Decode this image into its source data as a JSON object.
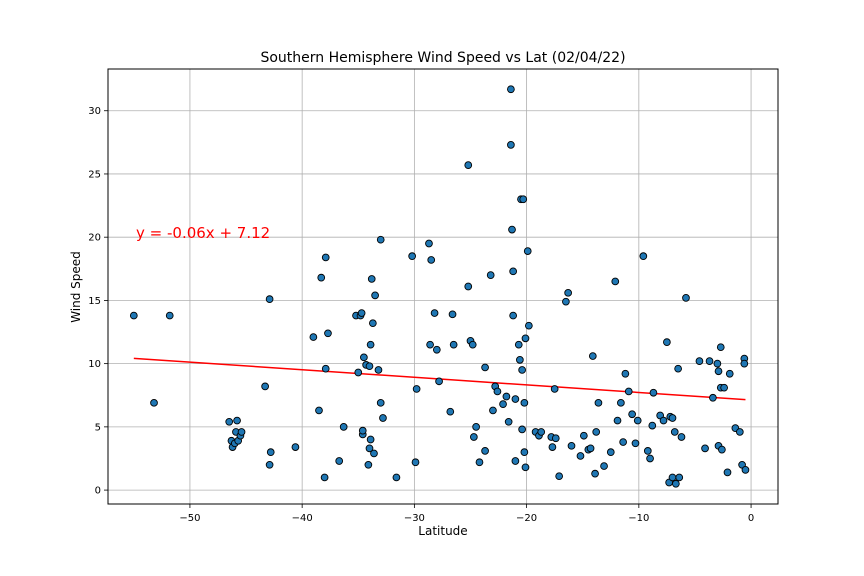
{
  "chart_data": {
    "type": "scatter",
    "title": "Southern Hemisphere Wind Speed vs Lat (02/04/22)",
    "xlabel": "Latitude",
    "ylabel": "Wind Speed",
    "xlim": [
      -57.3,
      2.4
    ],
    "ylim": [
      -1.1,
      33.3
    ],
    "xticks": [
      -50,
      -40,
      -30,
      -20,
      -10,
      0
    ],
    "yticks": [
      0,
      5,
      10,
      15,
      20,
      25,
      30
    ],
    "grid": true,
    "point_color": "#1f77b4",
    "point_edge_color": "#000000",
    "regression": {
      "equation": "y = -0.06x + 7.12",
      "slope": -0.06,
      "intercept": 7.12,
      "x_range": [
        -55.0,
        -0.5
      ],
      "color": "#ff0000"
    },
    "points": [
      [
        -55.0,
        13.8
      ],
      [
        -53.2,
        6.9
      ],
      [
        -51.8,
        13.8
      ],
      [
        -46.5,
        5.4
      ],
      [
        -46.3,
        3.9
      ],
      [
        -46.2,
        3.4
      ],
      [
        -46.0,
        3.7
      ],
      [
        -45.9,
        4.6
      ],
      [
        -45.8,
        5.5
      ],
      [
        -45.7,
        3.9
      ],
      [
        -45.5,
        4.3
      ],
      [
        -45.4,
        4.6
      ],
      [
        -43.3,
        8.2
      ],
      [
        -42.9,
        15.1
      ],
      [
        -42.9,
        2.0
      ],
      [
        -42.8,
        3.0
      ],
      [
        -40.6,
        3.4
      ],
      [
        -39.0,
        12.1
      ],
      [
        -38.5,
        6.3
      ],
      [
        -38.3,
        16.8
      ],
      [
        -38.0,
        1.0
      ],
      [
        -37.9,
        18.4
      ],
      [
        -37.9,
        9.6
      ],
      [
        -37.7,
        12.4
      ],
      [
        -36.7,
        2.3
      ],
      [
        -36.3,
        5.0
      ],
      [
        -35.2,
        13.8
      ],
      [
        -35.0,
        9.3
      ],
      [
        -34.8,
        13.8
      ],
      [
        -34.7,
        14.0
      ],
      [
        -34.6,
        4.4
      ],
      [
        -34.6,
        4.7
      ],
      [
        -34.5,
        10.5
      ],
      [
        -34.3,
        9.9
      ],
      [
        -34.1,
        2.0
      ],
      [
        -34.0,
        3.3
      ],
      [
        -34.0,
        9.8
      ],
      [
        -33.9,
        4.0
      ],
      [
        -33.9,
        11.5
      ],
      [
        -33.8,
        16.7
      ],
      [
        -33.7,
        13.2
      ],
      [
        -33.6,
        2.9
      ],
      [
        -33.5,
        15.4
      ],
      [
        -33.2,
        9.5
      ],
      [
        -33.0,
        6.9
      ],
      [
        -33.0,
        19.8
      ],
      [
        -32.8,
        5.7
      ],
      [
        -31.6,
        1.0
      ],
      [
        -30.2,
        18.5
      ],
      [
        -29.9,
        2.2
      ],
      [
        -29.8,
        8.0
      ],
      [
        -28.7,
        19.5
      ],
      [
        -28.6,
        11.5
      ],
      [
        -28.5,
        18.2
      ],
      [
        -28.2,
        14.0
      ],
      [
        -28.0,
        11.1
      ],
      [
        -27.8,
        8.6
      ],
      [
        -26.8,
        6.2
      ],
      [
        -26.6,
        13.9
      ],
      [
        -26.5,
        11.5
      ],
      [
        -25.2,
        16.1
      ],
      [
        -25.2,
        25.7
      ],
      [
        -25.0,
        11.8
      ],
      [
        -24.8,
        11.5
      ],
      [
        -24.7,
        4.2
      ],
      [
        -24.5,
        5.0
      ],
      [
        -24.2,
        2.2
      ],
      [
        -23.7,
        3.1
      ],
      [
        -23.7,
        9.7
      ],
      [
        -23.2,
        17.0
      ],
      [
        -23.0,
        6.3
      ],
      [
        -22.8,
        8.2
      ],
      [
        -22.6,
        7.8
      ],
      [
        -22.1,
        6.8
      ],
      [
        -21.8,
        7.4
      ],
      [
        -21.6,
        5.4
      ],
      [
        -21.4,
        31.7
      ],
      [
        -21.4,
        27.3
      ],
      [
        -21.3,
        20.6
      ],
      [
        -21.2,
        17.3
      ],
      [
        -21.2,
        13.8
      ],
      [
        -21.0,
        7.2
      ],
      [
        -21.0,
        2.3
      ],
      [
        -20.7,
        11.5
      ],
      [
        -20.6,
        10.3
      ],
      [
        -20.5,
        23.0
      ],
      [
        -20.4,
        9.5
      ],
      [
        -20.4,
        4.8
      ],
      [
        -20.3,
        23.0
      ],
      [
        -20.2,
        6.9
      ],
      [
        -20.2,
        3.0
      ],
      [
        -20.1,
        1.8
      ],
      [
        -20.1,
        12.0
      ],
      [
        -19.9,
        18.9
      ],
      [
        -19.8,
        13.0
      ],
      [
        -19.2,
        4.6
      ],
      [
        -18.9,
        4.3
      ],
      [
        -18.7,
        4.6
      ],
      [
        -17.8,
        4.2
      ],
      [
        -17.7,
        3.4
      ],
      [
        -17.5,
        8.0
      ],
      [
        -17.4,
        4.1
      ],
      [
        -17.1,
        1.1
      ],
      [
        -16.5,
        14.9
      ],
      [
        -16.3,
        15.6
      ],
      [
        -16.0,
        3.5
      ],
      [
        -15.2,
        2.7
      ],
      [
        -14.9,
        4.3
      ],
      [
        -14.5,
        3.2
      ],
      [
        -14.3,
        3.3
      ],
      [
        -14.1,
        10.6
      ],
      [
        -13.9,
        1.3
      ],
      [
        -13.8,
        4.6
      ],
      [
        -13.6,
        6.9
      ],
      [
        -13.1,
        1.9
      ],
      [
        -12.5,
        3.0
      ],
      [
        -12.1,
        16.5
      ],
      [
        -11.9,
        5.5
      ],
      [
        -11.6,
        6.9
      ],
      [
        -11.4,
        3.8
      ],
      [
        -11.2,
        9.2
      ],
      [
        -10.9,
        7.8
      ],
      [
        -10.6,
        6.0
      ],
      [
        -10.3,
        3.7
      ],
      [
        -10.1,
        5.5
      ],
      [
        -9.6,
        18.5
      ],
      [
        -9.2,
        3.1
      ],
      [
        -9.0,
        2.5
      ],
      [
        -8.8,
        5.1
      ],
      [
        -8.7,
        7.7
      ],
      [
        -8.1,
        5.9
      ],
      [
        -7.8,
        5.5
      ],
      [
        -7.5,
        11.7
      ],
      [
        -7.3,
        0.6
      ],
      [
        -7.2,
        5.8
      ],
      [
        -7.0,
        5.7
      ],
      [
        -7.0,
        1.0
      ],
      [
        -6.8,
        4.6
      ],
      [
        -6.7,
        0.5
      ],
      [
        -6.5,
        9.6
      ],
      [
        -6.4,
        1.0
      ],
      [
        -6.2,
        4.2
      ],
      [
        -5.8,
        15.2
      ],
      [
        -4.6,
        10.2
      ],
      [
        -4.1,
        3.3
      ],
      [
        -3.7,
        10.2
      ],
      [
        -3.4,
        7.3
      ],
      [
        -3.0,
        10.0
      ],
      [
        -2.9,
        9.4
      ],
      [
        -2.9,
        3.5
      ],
      [
        -2.7,
        11.3
      ],
      [
        -2.7,
        8.1
      ],
      [
        -2.6,
        3.2
      ],
      [
        -2.4,
        8.1
      ],
      [
        -2.1,
        1.4
      ],
      [
        -1.9,
        9.2
      ],
      [
        -1.4,
        4.9
      ],
      [
        -1.0,
        4.6
      ],
      [
        -0.8,
        2.0
      ],
      [
        -0.6,
        10.4
      ],
      [
        -0.6,
        10.0
      ],
      [
        -0.5,
        1.6
      ]
    ]
  }
}
